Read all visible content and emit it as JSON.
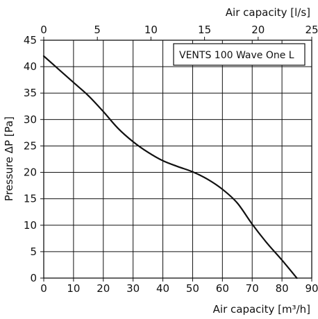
{
  "chart_data": {
    "type": "line",
    "title": "",
    "legend_text": "VENTS 100 Wave One L",
    "legend_position": "top-right",
    "grid": true,
    "x_axis": {
      "label": "Air capacity [m³/h]",
      "min": 0,
      "max": 90,
      "ticks": [
        0,
        10,
        20,
        30,
        40,
        50,
        60,
        70,
        80,
        90
      ]
    },
    "x2_axis": {
      "label": "Air capacity [l/s]",
      "min": 0,
      "max": 25,
      "ticks": [
        0,
        5,
        10,
        15,
        20,
        25
      ]
    },
    "y_axis": {
      "label": "Pressure ΔP [Pa]",
      "min": 0,
      "max": 45,
      "ticks": [
        0,
        5,
        10,
        15,
        20,
        25,
        30,
        35,
        40,
        45
      ]
    },
    "series": [
      {
        "name": "VENTS 100 Wave One L",
        "x": [
          0,
          5,
          10,
          15,
          20,
          25,
          30,
          35,
          40,
          45,
          50,
          55,
          60,
          65,
          70,
          75,
          80,
          85
        ],
        "y": [
          42,
          39.5,
          37,
          34.5,
          31.5,
          28.3,
          25.8,
          23.8,
          22.2,
          21.1,
          20.1,
          18.7,
          16.8,
          14.2,
          10.2,
          6.6,
          3.4,
          0
        ]
      }
    ],
    "colors": {
      "line": "#111111",
      "grid": "#111111",
      "background": "#ffffff"
    }
  }
}
